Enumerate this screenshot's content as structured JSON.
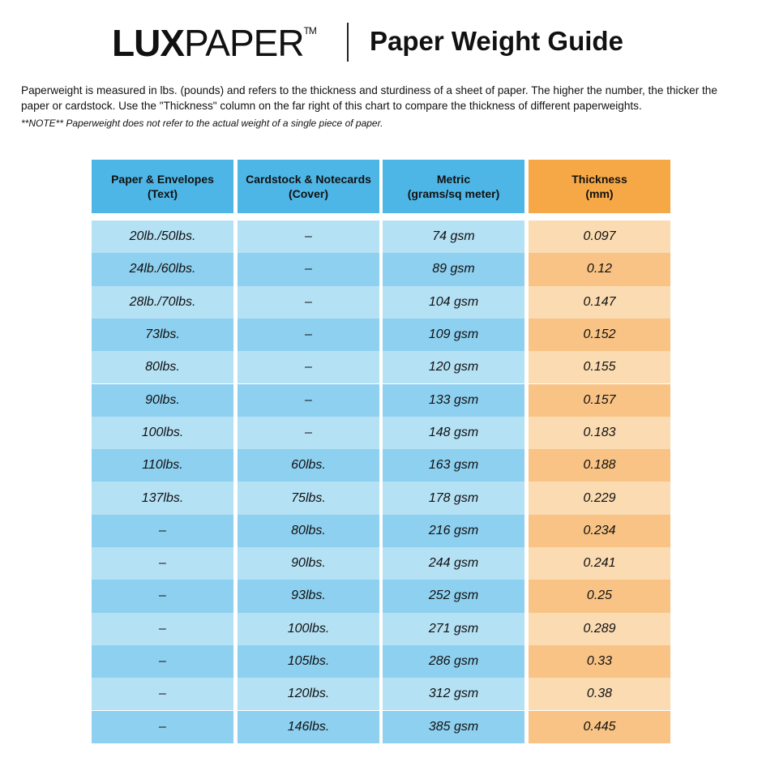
{
  "logo": {
    "text_bold": "LUX",
    "text_light": "PAPER",
    "tm": "TM"
  },
  "title": "Paper Weight Guide",
  "intro": "Paperweight is measured in lbs. (pounds) and refers to the thickness and sturdiness of a sheet of paper. The higher the number, the thicker the paper or cardstock. Use the \"Thickness\" column on the far right of this chart to compare the thickness of different paperweights.",
  "note": "**NOTE** Paperweight does not refer to the actual weight of a single piece of paper.",
  "colors": {
    "header_blue": "#4db6e6",
    "header_orange": "#f7a846",
    "row_blue_light": "#b5e1f5",
    "row_blue_dark": "#8ed0f0",
    "row_orange_light": "#fbdbb1",
    "row_orange_dark": "#f8c384"
  },
  "table": {
    "headers": [
      [
        "Paper & Envelopes",
        "(Text)"
      ],
      [
        "Cardstock & Notecards",
        "(Cover)"
      ],
      [
        "Metric",
        "(grams/sq meter)"
      ],
      [
        "Thickness",
        "(mm)"
      ]
    ],
    "rows": [
      [
        "20lb./50lbs.",
        "–",
        "74 gsm",
        "0.097"
      ],
      [
        "24lb./60lbs.",
        "–",
        "89 gsm",
        "0.12"
      ],
      [
        "28lb./70lbs.",
        "–",
        "104 gsm",
        "0.147"
      ],
      [
        "73lbs.",
        "–",
        "109 gsm",
        "0.152"
      ],
      [
        "80lbs.",
        "–",
        "120 gsm",
        "0.155"
      ],
      [
        "90lbs.",
        "–",
        "133 gsm",
        "0.157"
      ],
      [
        "100lbs.",
        "–",
        "148 gsm",
        "0.183"
      ],
      [
        "110lbs.",
        "60lbs.",
        "163 gsm",
        "0.188"
      ],
      [
        "137lbs.",
        "75lbs.",
        "178 gsm",
        "0.229"
      ],
      [
        "–",
        "80lbs.",
        "216 gsm",
        "0.234"
      ],
      [
        "–",
        "90lbs.",
        "244 gsm",
        "0.241"
      ],
      [
        "–",
        "93lbs.",
        "252 gsm",
        "0.25"
      ],
      [
        "–",
        "100lbs.",
        "271 gsm",
        "0.289"
      ],
      [
        "–",
        "105lbs.",
        "286 gsm",
        "0.33"
      ],
      [
        "–",
        "120lbs.",
        "312 gsm",
        "0.38"
      ],
      [
        "–",
        "146lbs.",
        "385 gsm",
        "0.445"
      ]
    ]
  }
}
